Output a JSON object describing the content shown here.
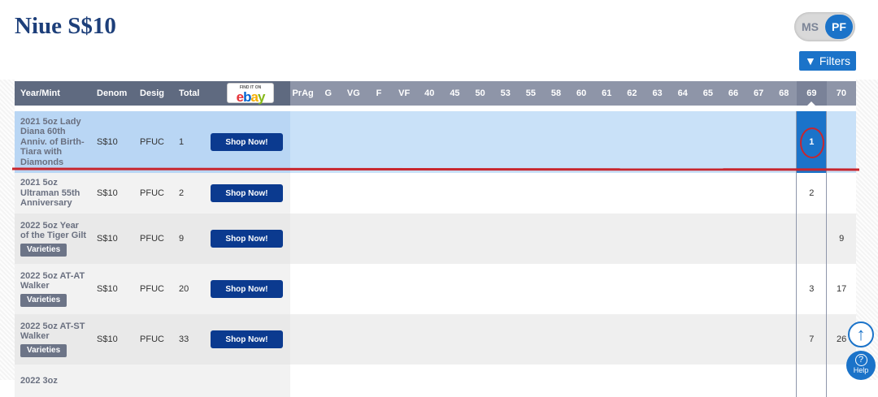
{
  "title": "Niue S$10",
  "toggle": {
    "ms": "MS",
    "pf": "PF",
    "selected": "PF"
  },
  "filters_label": "Filters",
  "columns": {
    "year": "Year/Mint",
    "denom": "Denom",
    "desig": "Desig",
    "total": "Total",
    "ebay_small": "FIND IT ON",
    "ebay": "ebay",
    "grades": [
      "PrAg",
      "G",
      "VG",
      "F",
      "VF",
      "40",
      "45",
      "50",
      "53",
      "55",
      "58",
      "60",
      "61",
      "62",
      "63",
      "64",
      "65",
      "66",
      "67",
      "68",
      "69",
      "70"
    ]
  },
  "shop_label": "Shop Now!",
  "varieties_label": "Varieties",
  "rows": [
    {
      "name": "2021 5oz Lady Diana 60th Anniv. of Birth-Tiara with Diamonds",
      "denom": "S$10",
      "desig": "PFUC",
      "total": "1",
      "g69": "1",
      "g70": "",
      "varieties": false
    },
    {
      "name": "2021 5oz Ultraman 55th Anniversary",
      "denom": "S$10",
      "desig": "PFUC",
      "total": "2",
      "g69": "2",
      "g70": "",
      "varieties": false
    },
    {
      "name": "2022 5oz Year of the Tiger Gilt",
      "denom": "S$10",
      "desig": "PFUC",
      "total": "9",
      "g69": "",
      "g70": "9",
      "varieties": true
    },
    {
      "name": "2022 5oz AT-AT Walker",
      "denom": "S$10",
      "desig": "PFUC",
      "total": "20",
      "g69": "3",
      "g70": "17",
      "varieties": true
    },
    {
      "name": "2022 5oz AT-ST Walker",
      "denom": "S$10",
      "desig": "PFUC",
      "total": "33",
      "g69": "7",
      "g70": "26",
      "varieties": true
    },
    {
      "name": "2022 3oz",
      "denom": "",
      "desig": "",
      "total": "",
      "g69": "",
      "g70": "",
      "varieties": false
    }
  ],
  "help_label": "Help",
  "colors": {
    "accent": "#1b73c9",
    "header": "#5f6a80",
    "shop": "#0b3a8f",
    "highlight": "#c8262e"
  }
}
